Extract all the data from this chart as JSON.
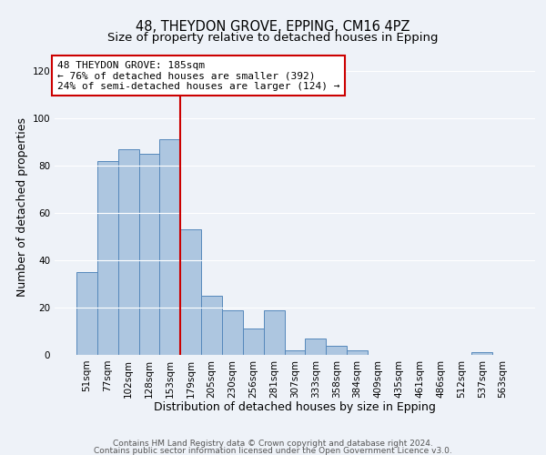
{
  "title": "48, THEYDON GROVE, EPPING, CM16 4PZ",
  "subtitle": "Size of property relative to detached houses in Epping",
  "xlabel": "Distribution of detached houses by size in Epping",
  "ylabel": "Number of detached properties",
  "bar_labels": [
    "51sqm",
    "77sqm",
    "102sqm",
    "128sqm",
    "153sqm",
    "179sqm",
    "205sqm",
    "230sqm",
    "256sqm",
    "281sqm",
    "307sqm",
    "333sqm",
    "358sqm",
    "384sqm",
    "409sqm",
    "435sqm",
    "461sqm",
    "486sqm",
    "512sqm",
    "537sqm",
    "563sqm"
  ],
  "bar_values": [
    35,
    82,
    87,
    85,
    91,
    53,
    25,
    19,
    11,
    19,
    2,
    7,
    4,
    2,
    0,
    0,
    0,
    0,
    0,
    1,
    0
  ],
  "bar_color": "#adc6e0",
  "bar_edge_color": "#5588bb",
  "vline_color": "#cc0000",
  "vline_x_index": 5,
  "annotation_line1": "48 THEYDON GROVE: 185sqm",
  "annotation_line2": "← 76% of detached houses are smaller (392)",
  "annotation_line3": "24% of semi-detached houses are larger (124) →",
  "ylim": [
    0,
    125
  ],
  "yticks": [
    0,
    20,
    40,
    60,
    80,
    100,
    120
  ],
  "footer_line1": "Contains HM Land Registry data © Crown copyright and database right 2024.",
  "footer_line2": "Contains public sector information licensed under the Open Government Licence v3.0.",
  "title_fontsize": 10.5,
  "subtitle_fontsize": 9.5,
  "axis_label_fontsize": 9,
  "tick_fontsize": 7.5,
  "annotation_fontsize": 8,
  "footer_fontsize": 6.5,
  "bg_color": "#eef2f8"
}
